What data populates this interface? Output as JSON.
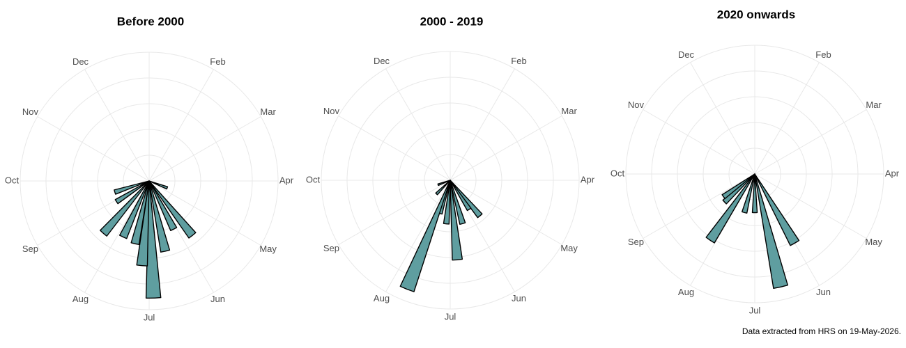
{
  "chart_data": [
    {
      "type": "polar_bar",
      "title": "Before 2000",
      "color": "#5f9ea0",
      "grid": true,
      "xlim": [
        0,
        12
      ],
      "xticks": [
        {
          "value": 1,
          "label": "Feb"
        },
        {
          "value": 2,
          "label": "Mar"
        },
        {
          "value": 3,
          "label": "Apr"
        },
        {
          "value": 4,
          "label": "May"
        },
        {
          "value": 5,
          "label": "Jun"
        },
        {
          "value": 6,
          "label": "Jul"
        },
        {
          "value": 7,
          "label": "Aug"
        },
        {
          "value": 8,
          "label": "Sep"
        },
        {
          "value": 9,
          "label": "Oct"
        },
        {
          "value": 10,
          "label": "Nov"
        },
        {
          "value": 11,
          "label": "Dec"
        }
      ],
      "ylim": [
        0,
        10
      ],
      "yticks": [
        2,
        4,
        6,
        8,
        10
      ],
      "x": [
        3.7,
        4.72,
        5.1,
        5.57,
        5.93,
        6.16,
        6.42,
        6.83,
        7.37,
        7.92,
        8.4
      ],
      "values": [
        1.5,
        5.4,
        4.2,
        5.6,
        9.1,
        6.6,
        5.0,
        4.8,
        5.4,
        3.0,
        2.8
      ]
    },
    {
      "type": "polar_bar",
      "title": "2000 - 2019",
      "color": "#5f9ea0",
      "grid": true,
      "xlim": [
        0,
        12
      ],
      "xticks": [
        {
          "value": 1,
          "label": "Feb"
        },
        {
          "value": 2,
          "label": "Mar"
        },
        {
          "value": 3,
          "label": "Apr"
        },
        {
          "value": 4,
          "label": "May"
        },
        {
          "value": 5,
          "label": "Jun"
        },
        {
          "value": 6,
          "label": "Jul"
        },
        {
          "value": 7,
          "label": "Aug"
        },
        {
          "value": 8,
          "label": "Sep"
        },
        {
          "value": 9,
          "label": "Oct"
        },
        {
          "value": 10,
          "label": "Nov"
        },
        {
          "value": 11,
          "label": "Dec"
        }
      ],
      "ylim": [
        0,
        10
      ],
      "yticks": [
        2,
        4,
        6,
        8,
        10
      ],
      "x": [
        4.67,
        4.9,
        5.47,
        5.83,
        6.17,
        6.57,
        6.72,
        7.5,
        8.33
      ],
      "values": [
        3.6,
        2.7,
        3.5,
        6.2,
        3.4,
        2.7,
        9.1,
        1.5,
        1.0
      ]
    },
    {
      "type": "polar_bar",
      "title": "2020 onwards",
      "color": "#5f9ea0",
      "grid": true,
      "xlim": [
        0,
        12
      ],
      "xticks": [
        {
          "value": 1,
          "label": "Feb"
        },
        {
          "value": 2,
          "label": "Mar"
        },
        {
          "value": 3,
          "label": "Apr"
        },
        {
          "value": 4,
          "label": "May"
        },
        {
          "value": 5,
          "label": "Jun"
        },
        {
          "value": 6,
          "label": "Jul"
        },
        {
          "value": 7,
          "label": "Aug"
        },
        {
          "value": 8,
          "label": "Sep"
        },
        {
          "value": 9,
          "label": "Oct"
        },
        {
          "value": 10,
          "label": "Nov"
        },
        {
          "value": 11,
          "label": "Dec"
        }
      ],
      "ylim": [
        0,
        10
      ],
      "yticks": [
        2,
        4,
        6,
        8,
        10
      ],
      "x": [
        5.0,
        5.57,
        6.0,
        6.5,
        7.13,
        7.57,
        7.8
      ],
      "values": [
        6.2,
        9.0,
        3.0,
        3.1,
        6.2,
        3.2,
        3.0
      ]
    }
  ],
  "footnote": "Data extracted from HRS on 19-May-2026."
}
